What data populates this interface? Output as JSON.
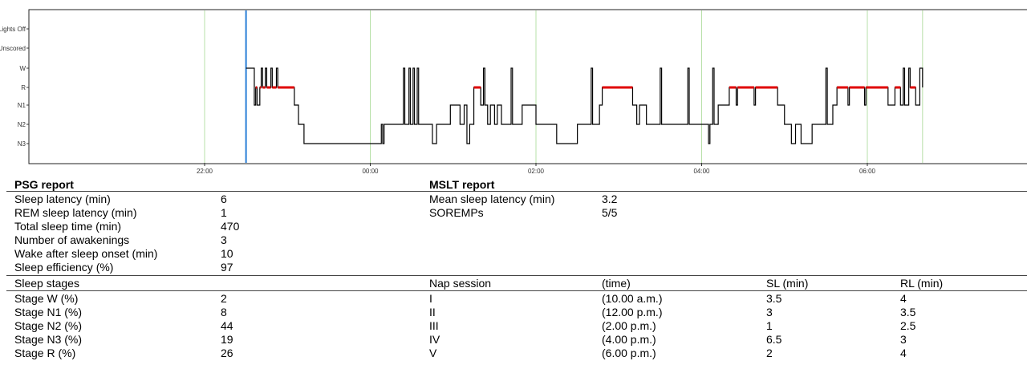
{
  "chart_data": {
    "type": "line",
    "title": "",
    "xlabel": "",
    "ylabel": "",
    "x_ticks": [
      "22:00",
      "00:00",
      "02:00",
      "04:00",
      "06:00"
    ],
    "y_categories": [
      "Lights Off",
      "Unscored",
      "W",
      "R",
      "N1",
      "N2",
      "N3"
    ],
    "highlight_category": "R",
    "lights_off_time": "22:30",
    "record_end_time": "06:40",
    "colors": {
      "sleep_trace": "#000000",
      "rem_segments": "#e00000",
      "lights_off_marker": "#2a7fd6",
      "hour_grid": "#b7e0a8",
      "rem_label": "#d00000"
    },
    "series": [
      {
        "values": [
          [
            "22:30",
            "W"
          ],
          [
            "22:36",
            "N1"
          ],
          [
            "22:37",
            "R"
          ],
          [
            "22:38",
            "N1"
          ],
          [
            "22:40",
            "R"
          ],
          [
            "22:41",
            "W"
          ],
          [
            "22:42",
            "R"
          ],
          [
            "22:44",
            "W"
          ],
          [
            "22:45",
            "R"
          ],
          [
            "22:48",
            "W"
          ],
          [
            "22:49",
            "R"
          ],
          [
            "22:52",
            "W"
          ],
          [
            "22:53",
            "R"
          ],
          [
            "23:05",
            "N1"
          ],
          [
            "23:08",
            "N2"
          ],
          [
            "23:12",
            "N3"
          ],
          [
            "23:58",
            "N3"
          ],
          [
            "00:00",
            "N3"
          ],
          [
            "00:08",
            "N2"
          ],
          [
            "00:09",
            "N3"
          ],
          [
            "00:10",
            "N2"
          ],
          [
            "00:20",
            "N2"
          ],
          [
            "00:24",
            "W"
          ],
          [
            "00:25",
            "N2"
          ],
          [
            "00:28",
            "W"
          ],
          [
            "00:29",
            "N2"
          ],
          [
            "00:31",
            "W"
          ],
          [
            "00:32",
            "N2"
          ],
          [
            "00:34",
            "W"
          ],
          [
            "00:35",
            "N2"
          ],
          [
            "00:42",
            "N2"
          ],
          [
            "00:45",
            "N3"
          ],
          [
            "00:48",
            "N2"
          ],
          [
            "00:55",
            "N2"
          ],
          [
            "00:58",
            "N1"
          ],
          [
            "01:02",
            "N1"
          ],
          [
            "01:05",
            "N2"
          ],
          [
            "01:08",
            "N1"
          ],
          [
            "01:10",
            "N3"
          ],
          [
            "01:12",
            "N2"
          ],
          [
            "01:15",
            "R"
          ],
          [
            "01:20",
            "N1"
          ],
          [
            "01:22",
            "W"
          ],
          [
            "01:23",
            "N1"
          ],
          [
            "01:25",
            "N2"
          ],
          [
            "01:27",
            "N1"
          ],
          [
            "01:30",
            "N2"
          ],
          [
            "01:32",
            "N1"
          ],
          [
            "01:35",
            "N2"
          ],
          [
            "01:42",
            "W"
          ],
          [
            "01:43",
            "N2"
          ],
          [
            "01:50",
            "N1"
          ],
          [
            "02:00",
            "N2"
          ],
          [
            "02:10",
            "N2"
          ],
          [
            "02:15",
            "N3"
          ],
          [
            "02:30",
            "N2"
          ],
          [
            "02:37",
            "N2"
          ],
          [
            "02:40",
            "W"
          ],
          [
            "02:41",
            "N2"
          ],
          [
            "02:46",
            "N1"
          ],
          [
            "02:48",
            "R"
          ],
          [
            "03:10",
            "N1"
          ],
          [
            "03:13",
            "N2"
          ],
          [
            "03:15",
            "N1"
          ],
          [
            "03:20",
            "N2"
          ],
          [
            "03:28",
            "N2"
          ],
          [
            "03:30",
            "W"
          ],
          [
            "03:31",
            "N2"
          ],
          [
            "03:40",
            "N2"
          ],
          [
            "03:48",
            "N2"
          ],
          [
            "03:50",
            "W"
          ],
          [
            "03:51",
            "N2"
          ],
          [
            "03:55",
            "N2"
          ],
          [
            "04:00",
            "N2"
          ],
          [
            "04:05",
            "N3"
          ],
          [
            "04:06",
            "N2"
          ],
          [
            "04:08",
            "W"
          ],
          [
            "04:09",
            "N2"
          ],
          [
            "04:12",
            "N1"
          ],
          [
            "04:20",
            "R"
          ],
          [
            "04:25",
            "N1"
          ],
          [
            "04:26",
            "R"
          ],
          [
            "04:38",
            "N1"
          ],
          [
            "04:39",
            "R"
          ],
          [
            "04:55",
            "N1"
          ],
          [
            "05:00",
            "N2"
          ],
          [
            "05:05",
            "N3"
          ],
          [
            "05:08",
            "N2"
          ],
          [
            "05:12",
            "N3"
          ],
          [
            "05:20",
            "N2"
          ],
          [
            "05:30",
            "W"
          ],
          [
            "05:31",
            "N2"
          ],
          [
            "05:35",
            "N1"
          ],
          [
            "05:38",
            "R"
          ],
          [
            "05:46",
            "N1"
          ],
          [
            "05:47",
            "R"
          ],
          [
            "05:58",
            "N1"
          ],
          [
            "05:59",
            "R"
          ],
          [
            "06:15",
            "N1"
          ],
          [
            "06:20",
            "R"
          ],
          [
            "06:24",
            "N1"
          ],
          [
            "06:26",
            "W"
          ],
          [
            "06:27",
            "N1"
          ],
          [
            "06:30",
            "W"
          ],
          [
            "06:31",
            "R"
          ],
          [
            "06:35",
            "N1"
          ],
          [
            "06:38",
            "W"
          ],
          [
            "06:40",
            "R"
          ]
        ]
      }
    ]
  },
  "psg_report": {
    "title": "PSG report",
    "rows": [
      {
        "label": "Sleep latency (min)",
        "value": "6"
      },
      {
        "label": "REM sleep latency (min)",
        "value": "1"
      },
      {
        "label": "Total sleep time (min)",
        "value": "470"
      },
      {
        "label": "Number of awakenings",
        "value": "3"
      },
      {
        "label": "Wake after sleep onset (min)",
        "value": "10"
      },
      {
        "label": "Sleep efficiency (%)",
        "value": "97"
      }
    ]
  },
  "mslt_report": {
    "title": "MSLT report",
    "rows": [
      {
        "label": "Mean sleep latency (min)",
        "value": "3.2"
      },
      {
        "label": "SOREMPs",
        "value": "5/5"
      }
    ]
  },
  "sleep_stages": {
    "header": "Sleep stages",
    "rows": [
      {
        "label": "Stage W (%)",
        "value": "2"
      },
      {
        "label": "Stage N1 (%)",
        "value": "8"
      },
      {
        "label": "Stage N2 (%)",
        "value": "44"
      },
      {
        "label": "Stage N3 (%)",
        "value": "19"
      },
      {
        "label": "Stage R (%)",
        "value": "26"
      }
    ]
  },
  "nap_sessions": {
    "headers": {
      "session": "Nap session",
      "time": "(time)",
      "sl": "SL (min)",
      "rl": "RL (min)"
    },
    "rows": [
      {
        "session": "I",
        "time": "(10.00 a.m.)",
        "sl": "3.5",
        "rl": "4"
      },
      {
        "session": "II",
        "time": "(12.00 p.m.)",
        "sl": "3",
        "rl": "3.5"
      },
      {
        "session": "III",
        "time": "(2.00 p.m.)",
        "sl": "1",
        "rl": "2.5"
      },
      {
        "session": "IV",
        "time": "(4.00 p.m.)",
        "sl": "6.5",
        "rl": "3"
      },
      {
        "session": "V",
        "time": "(6.00 p.m.)",
        "sl": "2",
        "rl": "4"
      }
    ]
  }
}
